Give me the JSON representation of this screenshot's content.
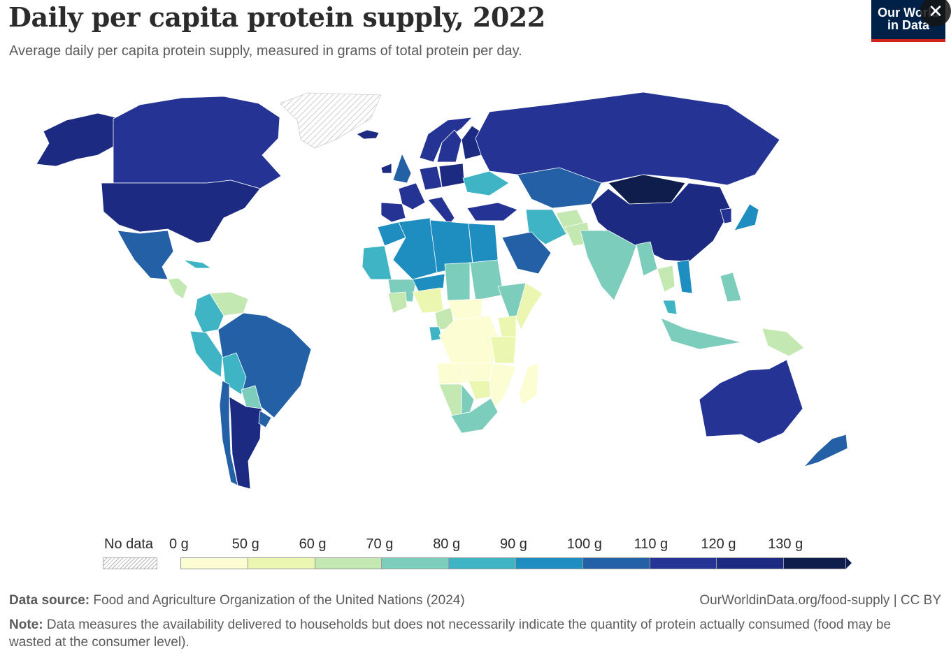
{
  "header": {
    "title": "Daily per capita protein supply, 2022",
    "subtitle": "Average daily per capita protein supply, measured in grams of total protein per day."
  },
  "logo": {
    "line1": "Our World",
    "line2": "in Data",
    "background": "#002147",
    "accent": "#ce261e"
  },
  "close_icon": {
    "glyph": "✕",
    "icon": "close-icon"
  },
  "legend": {
    "no_data_label": "No data",
    "labels": [
      "0 g",
      "50 g",
      "60 g",
      "70 g",
      "80 g",
      "90 g",
      "100 g",
      "110 g",
      "120 g",
      "130 g"
    ],
    "colors": [
      "#fcfdd3",
      "#ebf6b0",
      "#c4e8b1",
      "#7dcdbd",
      "#3fb4c5",
      "#1e8ec0",
      "#2360a6",
      "#253494",
      "#1c2a82",
      "#0f1d4d"
    ],
    "no_data_pattern": "hatched"
  },
  "footer": {
    "source_label": "Data source:",
    "source_text": "Food and Agriculture Organization of the United Nations (2024)",
    "url_text": "OurWorldinData.org/food-supply | CC BY",
    "note_label": "Note:",
    "note_text": "Data measures the availability delivered to households but does not necessarily indicate the quantity of protein actually consumed (food may be wasted at the consumer level)."
  },
  "chart_data": {
    "type": "choropleth",
    "year": 2022,
    "unit": "g",
    "bins": [
      {
        "label": "0 g – 50 g",
        "min": 0,
        "max": 50
      },
      {
        "label": "50 g – 60 g",
        "min": 50,
        "max": 60
      },
      {
        "label": "60 g – 70 g",
        "min": 60,
        "max": 70
      },
      {
        "label": "70 g – 80 g",
        "min": 70,
        "max": 80
      },
      {
        "label": "80 g – 90 g",
        "min": 80,
        "max": 90
      },
      {
        "label": "90 g – 100 g",
        "min": 90,
        "max": 100
      },
      {
        "label": "100 g – 110 g",
        "min": 100,
        "max": 110
      },
      {
        "label": "110 g – 120 g",
        "min": 110,
        "max": 120
      },
      {
        "label": "120 g – 130 g",
        "min": 120,
        "max": 130
      },
      {
        "label": "> 130 g",
        "min": 130,
        "max": null
      }
    ],
    "regions": [
      {
        "name": "Alaska (United States)",
        "bin": 8
      },
      {
        "name": "Canada",
        "bin": 7
      },
      {
        "name": "Greenland",
        "bin": null
      },
      {
        "name": "Iceland",
        "bin": 8
      },
      {
        "name": "United States",
        "bin": 8
      },
      {
        "name": "Mexico",
        "bin": 6
      },
      {
        "name": "Guatemala",
        "bin": 2
      },
      {
        "name": "Cuba",
        "bin": 4
      },
      {
        "name": "Venezuela",
        "bin": 2
      },
      {
        "name": "Colombia",
        "bin": 4
      },
      {
        "name": "Peru",
        "bin": 4
      },
      {
        "name": "Brazil",
        "bin": 6
      },
      {
        "name": "Bolivia",
        "bin": 4
      },
      {
        "name": "Paraguay",
        "bin": 3
      },
      {
        "name": "Argentina",
        "bin": 8
      },
      {
        "name": "Chile",
        "bin": 6
      },
      {
        "name": "Uruguay",
        "bin": 6
      },
      {
        "name": "Norway",
        "bin": 7
      },
      {
        "name": "Sweden",
        "bin": 7
      },
      {
        "name": "Finland",
        "bin": 8
      },
      {
        "name": "United Kingdom",
        "bin": 6
      },
      {
        "name": "Ireland",
        "bin": 8
      },
      {
        "name": "France",
        "bin": 7
      },
      {
        "name": "Spain",
        "bin": 7
      },
      {
        "name": "Germany",
        "bin": 7
      },
      {
        "name": "Poland",
        "bin": 8
      },
      {
        "name": "Italy",
        "bin": 7
      },
      {
        "name": "Ukraine",
        "bin": 4
      },
      {
        "name": "Russia",
        "bin": 7
      },
      {
        "name": "Turkey",
        "bin": 7
      },
      {
        "name": "Kazakhstan",
        "bin": 6
      },
      {
        "name": "Mongolia",
        "bin": 9
      },
      {
        "name": "China",
        "bin": 8
      },
      {
        "name": "Japan",
        "bin": 5
      },
      {
        "name": "South Korea",
        "bin": 7
      },
      {
        "name": "Iran",
        "bin": 4
      },
      {
        "name": "Saudi Arabia",
        "bin": 6
      },
      {
        "name": "Afghanistan",
        "bin": 2
      },
      {
        "name": "Pakistan",
        "bin": 2
      },
      {
        "name": "India",
        "bin": 3
      },
      {
        "name": "Myanmar",
        "bin": 3
      },
      {
        "name": "Thailand",
        "bin": 2
      },
      {
        "name": "Vietnam",
        "bin": 5
      },
      {
        "name": "Malaysia",
        "bin": 4
      },
      {
        "name": "Indonesia",
        "bin": 3
      },
      {
        "name": "Philippines",
        "bin": 3
      },
      {
        "name": "Papua New Guinea",
        "bin": 2
      },
      {
        "name": "Australia",
        "bin": 7
      },
      {
        "name": "New Zealand",
        "bin": 6
      },
      {
        "name": "Morocco",
        "bin": 5
      },
      {
        "name": "Algeria",
        "bin": 5
      },
      {
        "name": "Libya",
        "bin": 5
      },
      {
        "name": "Egypt",
        "bin": 5
      },
      {
        "name": "Mauritania",
        "bin": 4
      },
      {
        "name": "Mali",
        "bin": 3
      },
      {
        "name": "Niger",
        "bin": 5
      },
      {
        "name": "Chad",
        "bin": 3
      },
      {
        "name": "Sudan",
        "bin": 3
      },
      {
        "name": "Ethiopia",
        "bin": 3
      },
      {
        "name": "Somalia",
        "bin": 1
      },
      {
        "name": "Nigeria",
        "bin": 1
      },
      {
        "name": "Ghana",
        "bin": 2
      },
      {
        "name": "Cameroon",
        "bin": 2
      },
      {
        "name": "Gabon",
        "bin": 4
      },
      {
        "name": "Central African Republic",
        "bin": 0
      },
      {
        "name": "DR Congo",
        "bin": 0
      },
      {
        "name": "Kenya",
        "bin": 1
      },
      {
        "name": "Tanzania",
        "bin": 1
      },
      {
        "name": "Angola",
        "bin": 0
      },
      {
        "name": "Zambia",
        "bin": 0
      },
      {
        "name": "Mozambique",
        "bin": 0
      },
      {
        "name": "Zimbabwe",
        "bin": 1
      },
      {
        "name": "Namibia",
        "bin": 2
      },
      {
        "name": "Botswana",
        "bin": 3
      },
      {
        "name": "South Africa",
        "bin": 3
      },
      {
        "name": "Madagascar",
        "bin": 0
      }
    ]
  }
}
